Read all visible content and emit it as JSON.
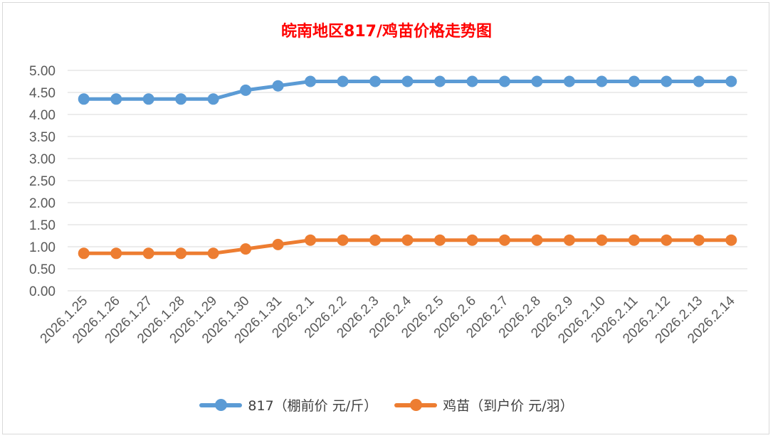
{
  "chart_data": {
    "type": "line",
    "title": "皖南地区817/鸡苗价格走势图",
    "categories": [
      "2026.1.25",
      "2026.1.26",
      "2026.1.27",
      "2026.1.28",
      "2026.1.29",
      "2026.1.30",
      "2026.1.31",
      "2026.2.1",
      "2026.2.2",
      "2026.2.3",
      "2026.2.4",
      "2026.2.5",
      "2026.2.6",
      "2026.2.7",
      "2026.2.8",
      "2026.2.9",
      "2026.2.10",
      "2026.2.11",
      "2026.2.12",
      "2026.2.13",
      "2026.2.14"
    ],
    "series": [
      {
        "name": "817（棚前价 元/斤）",
        "color": "#5b9bd5",
        "values": [
          4.35,
          4.35,
          4.35,
          4.35,
          4.35,
          4.55,
          4.65,
          4.75,
          4.75,
          4.75,
          4.75,
          4.75,
          4.75,
          4.75,
          4.75,
          4.75,
          4.75,
          4.75,
          4.75,
          4.75,
          4.75
        ]
      },
      {
        "name": "鸡苗（到户价 元/羽）",
        "color": "#ed7d31",
        "values": [
          0.85,
          0.85,
          0.85,
          0.85,
          0.85,
          0.95,
          1.05,
          1.15,
          1.15,
          1.15,
          1.15,
          1.15,
          1.15,
          1.15,
          1.15,
          1.15,
          1.15,
          1.15,
          1.15,
          1.15,
          1.15
        ]
      }
    ],
    "ylim": [
      0,
      5
    ],
    "yticks": [
      "0.00",
      "0.50",
      "1.00",
      "1.50",
      "2.00",
      "2.50",
      "3.00",
      "3.50",
      "4.00",
      "4.50",
      "5.00"
    ],
    "grid": true,
    "legend": "bottom"
  }
}
